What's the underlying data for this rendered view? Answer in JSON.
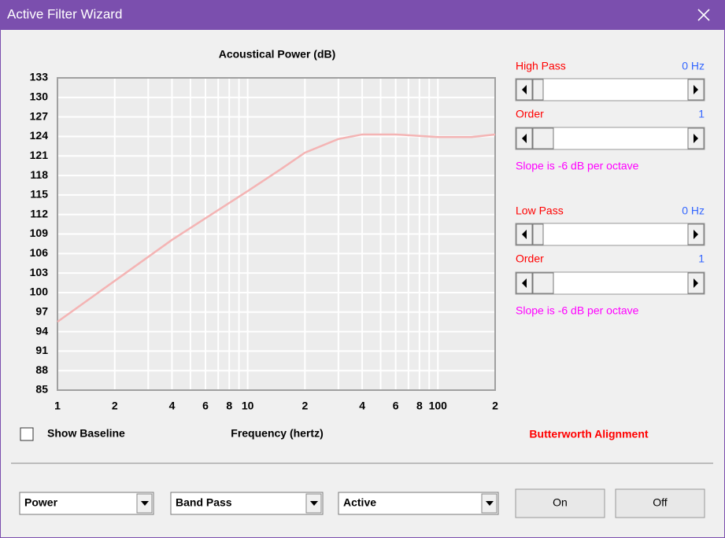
{
  "window": {
    "title": "Active Filter Wizard"
  },
  "chart_data": {
    "type": "line",
    "title": "Acoustical Power (dB)",
    "x_label": "Frequency (hertz)",
    "x": [
      1,
      2,
      4,
      10,
      15,
      20,
      30,
      40,
      60,
      100,
      150,
      200
    ],
    "values": [
      95.5,
      101.8,
      108.1,
      115.6,
      119,
      121.5,
      123.6,
      124.3,
      124.3,
      123.9,
      123.9,
      124.3
    ],
    "color": "#f4b4b4",
    "xscale": "log",
    "grid": true,
    "xlim": [
      1,
      200
    ],
    "ylim": [
      85,
      133
    ],
    "xticks": [
      1,
      2,
      4,
      6,
      8,
      10,
      {
        "value": 20,
        "label": "2"
      },
      {
        "value": 40,
        "label": "4"
      },
      {
        "value": 60,
        "label": "6"
      },
      {
        "value": 80,
        "label": "8"
      },
      100,
      {
        "value": 200,
        "label": "2"
      }
    ],
    "xminorticks": [
      3,
      5,
      7,
      9,
      30,
      50,
      70,
      90
    ],
    "yticks": [
      85,
      88,
      91,
      94,
      97,
      100,
      103,
      106,
      109,
      112,
      115,
      118,
      121,
      124,
      127,
      130,
      133
    ]
  },
  "show_baseline": {
    "label": "Show Baseline",
    "checked": false
  },
  "high_pass": {
    "label": "High Pass",
    "value": "0 Hz",
    "order_label": "Order",
    "order": 1,
    "slope": "Slope is -6 dB per octave"
  },
  "low_pass": {
    "label": "Low Pass",
    "value": "0 Hz",
    "order_label": "Order",
    "order": 1,
    "slope": "Slope is -6 dB per octave"
  },
  "alignment": "Butterworth Alignment",
  "dropdowns": [
    "Power",
    "Band Pass",
    "Active"
  ],
  "buttons": [
    "On",
    "Off"
  ]
}
